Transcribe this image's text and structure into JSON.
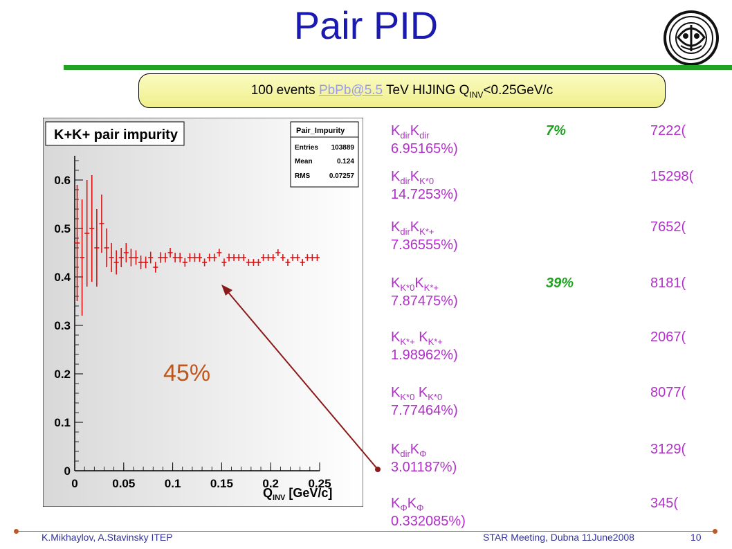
{
  "slide": {
    "title": "Pair PID",
    "banner": {
      "prefix": "100 events ",
      "link": "PbPb@5.5",
      "mid": " TeV HIJING  Q",
      "sub": "INV",
      "suffix": "<0.25GeV/c"
    },
    "pct45": "45%",
    "footer_left": "K.Mikhaylov, A.Stavinsky ITEP",
    "footer_mid": "STAR Meeting, Dubna 11June2008",
    "footer_num": "10"
  },
  "entries": [
    {
      "k1": "K",
      "s1": "dir",
      "k2": "K",
      "s2": "dir",
      "count": "7222(",
      "frac": "6.95165%)",
      "green": "7%"
    },
    {
      "k1": "K",
      "s1": "dir",
      "k2": "K",
      "s2": "K*0",
      "count": "15298(",
      "frac": "14.7253%)",
      "green": ""
    },
    {
      "k1": "K",
      "s1": "dir",
      "k2": "K",
      "s2": "K*+",
      "count": "7652(",
      "frac": "7.36555%)",
      "green": ""
    },
    {
      "k1": "K",
      "s1": "K*0",
      "k2": "K",
      "s2": "K*+",
      "count": "8181(",
      "frac": "7.87475%)",
      "green": "39%"
    },
    {
      "k1": "K",
      "s1": "K*+",
      "k2": " K",
      "s2": "K*+",
      "count": "2067(",
      "frac": "1.98962%)",
      "green": ""
    },
    {
      "k1": "K",
      "s1": "K*0",
      "k2": " K",
      "s2": "K*0",
      "count": "8077(",
      "frac": "7.77464%)",
      "green": ""
    },
    {
      "k1": "K",
      "s1": "dir",
      "k2": "K",
      "s2": "Φ",
      "count": "3129(",
      "frac": "3.01187%)",
      "green": ""
    },
    {
      "k1": "K",
      "s1": "Φ",
      "k2": "K",
      "s2": "Φ",
      "count": "345(",
      "frac": "0.332085%)",
      "green": ""
    }
  ],
  "chart_data": {
    "type": "scatter",
    "title": "K+K+ pair impurity",
    "xlabel": "Q_INV [GeV/c]",
    "ylabel": "",
    "xlim": [
      0,
      0.25
    ],
    "ylim": [
      0,
      0.65
    ],
    "xticks": [
      "0",
      "0.05",
      "0.1",
      "0.15",
      "0.2",
      "0.25"
    ],
    "yticks": [
      "0",
      "0.1",
      "0.2",
      "0.3",
      "0.4",
      "0.5",
      "0.6"
    ],
    "stats": {
      "name": "Pair_Impurity",
      "rows": [
        {
          "label": "Entries",
          "value": "103889"
        },
        {
          "label": "Mean",
          "value": "0.124"
        },
        {
          "label": "RMS",
          "value": "0.07257"
        }
      ]
    },
    "series": [
      {
        "color": "#e01010",
        "x": [
          0.0025,
          0.0075,
          0.0125,
          0.0175,
          0.0225,
          0.0275,
          0.0325,
          0.0375,
          0.0425,
          0.0475,
          0.0525,
          0.0575,
          0.0625,
          0.0675,
          0.0725,
          0.0775,
          0.0825,
          0.0875,
          0.0925,
          0.0975,
          0.1025,
          0.1075,
          0.1125,
          0.1175,
          0.1225,
          0.1275,
          0.1325,
          0.1375,
          0.1425,
          0.1475,
          0.1525,
          0.1575,
          0.1625,
          0.1675,
          0.1725,
          0.1775,
          0.1825,
          0.1875,
          0.1925,
          0.1975,
          0.2025,
          0.2075,
          0.2125,
          0.2175,
          0.2225,
          0.2275,
          0.2325,
          0.2375,
          0.2425,
          0.2475
        ],
        "y": [
          0.47,
          0.44,
          0.49,
          0.5,
          0.46,
          0.51,
          0.46,
          0.44,
          0.43,
          0.44,
          0.45,
          0.44,
          0.44,
          0.43,
          0.43,
          0.44,
          0.42,
          0.44,
          0.44,
          0.45,
          0.44,
          0.44,
          0.43,
          0.44,
          0.44,
          0.44,
          0.43,
          0.44,
          0.44,
          0.45,
          0.43,
          0.44,
          0.44,
          0.44,
          0.44,
          0.43,
          0.43,
          0.43,
          0.44,
          0.44,
          0.44,
          0.45,
          0.44,
          0.43,
          0.44,
          0.44,
          0.43,
          0.44,
          0.44,
          0.44
        ],
        "yerr": [
          0.12,
          0.12,
          0.11,
          0.11,
          0.08,
          0.06,
          0.04,
          0.03,
          0.025,
          0.02,
          0.02,
          0.018,
          0.015,
          0.014,
          0.012,
          0.012,
          0.011,
          0.011,
          0.01,
          0.01,
          0.01,
          0.01,
          0.009,
          0.009,
          0.009,
          0.009,
          0.008,
          0.008,
          0.008,
          0.008,
          0.008,
          0.008,
          0.007,
          0.007,
          0.007,
          0.007,
          0.007,
          0.007,
          0.007,
          0.007,
          0.007,
          0.007,
          0.007,
          0.007,
          0.007,
          0.007,
          0.007,
          0.007,
          0.007,
          0.007
        ]
      }
    ]
  }
}
